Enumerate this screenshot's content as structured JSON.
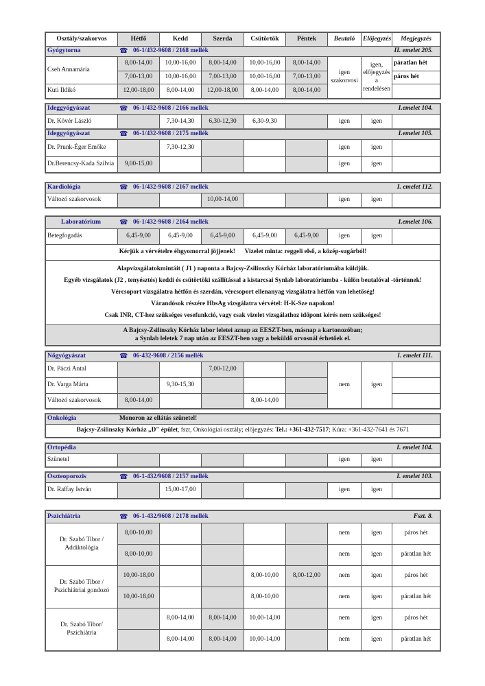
{
  "header": [
    "Osztály/szakorvos",
    "Hétfő",
    "Kedd",
    "Szerda",
    "Csütörtök",
    "Péntek",
    "Beutaló",
    "Előjegyzés",
    "Megjegyzés"
  ],
  "phone_icon": "telephone-icon",
  "colors": {
    "band": "#dcdcdc",
    "title": "#1c1c8a",
    "shaded_columns": "#dcdcdc"
  },
  "sections": [
    {
      "title": "Gyógytorna",
      "phone": "06-1/432-9608 / 2168 mellék",
      "location": "II. emelet 205.",
      "rows": [
        [
          "Cseh Annamária",
          "8,00-14,00",
          "10,00-16,00",
          "8,00-14,00",
          "10,00-16,00",
          "8,00-14,00",
          "igen szakorvosi",
          "igen, előjegyzés a rendelésen",
          "páratlan hét"
        ],
        [
          null,
          "7,00-13,00",
          "10,00-16,00",
          "7,00-13,00",
          "10,00-16,00",
          "7,00-13,00",
          null,
          null,
          "páros hét"
        ],
        [
          "Kuti Ildikó",
          "12,00-18,00",
          "8,00-14,00",
          "12,00-18,00",
          "8,00-14,00",
          "8,00-14,00",
          null,
          null,
          ""
        ]
      ]
    },
    {
      "title": "Ideggyógyászat",
      "phone": "06-1/432-9608 / 2166 mellék",
      "location": "I.emelet 104.",
      "rows": [
        [
          "Dr. Kövér László",
          "",
          "7,30-14,30",
          "6,30-12,30",
          "6,30-9,30",
          "",
          "igen",
          "igen",
          ""
        ]
      ]
    },
    {
      "title": "Ideggyógyászat",
      "phone": "06-1/432-9608 / 2175 mellék",
      "location": "I.emelet 105.",
      "rows": [
        [
          "Dr. Prunk-Éger Emőke",
          "",
          "7,30-12,30",
          "",
          "",
          "",
          "igen",
          "igen",
          ""
        ],
        [
          "Dr.Berencsy-Kada Szilvia",
          "9,00-15,00",
          "",
          "",
          "",
          "",
          "igen",
          "igen",
          ""
        ]
      ]
    },
    {
      "title": "Kardiológia",
      "phone": "06-1/432-9608 / 2167 mellék",
      "location": "I. emelet 112.",
      "rows": [
        [
          "Változó szakorvosok",
          "",
          "",
          "10,00-14,00",
          "",
          "",
          "igen",
          "igen",
          ""
        ]
      ]
    },
    {
      "title": "Laboratórium",
      "phone": "06-1/432-9608 / 2164 mellék",
      "location": "I.emelet 106.",
      "rows": [
        [
          "Betegfogadás",
          "6,45-9,00",
          "6,45-9,00",
          "6,45-9,00",
          "6,45-9,00",
          "6,45-9,00",
          "igen",
          "igen",
          ""
        ]
      ],
      "notice": "Kérjük a vérvételre éhgyomorral jöjjenek!      Vizelet minta: reggeli első, a közép-sugárból!",
      "info_lines": [
        "Alapvizsgálatokmintáit  ( J1 ) naponta a Bajcsy-Zsilinszky Kórház laboratóriumába küldjük.",
        "Egyéb vizsgálatok (J2 , tenyésztés) keddi és csütörtöki szállítással a kistarcsai Synlab laboratóriumba - külön beutalóval -történnek!",
        "Vércsoport vizsgálatra hétfőn és szerdán, vércsoport ellenanyag vizsgálatra hétfőn van lehetőség!",
        "Várandósok részére HbsAg vizsgálatra vérvétel: H-K-Sze napokon!",
        "Csak INR, CT-hez szükséges vesefunkció, vagy csak vizelet vizsgálathoz időpont kérés nem szükséges!"
      ],
      "footer_lines": [
        "A Bajcsy-Zsilinszky Kórház labor leletei aznap az EESZT-ben, másnap a kartonozóban;",
        "a Synlab leletek 7 nap után az EESZT-ben vagy a beküldő orvosnál érhetőek el."
      ]
    },
    {
      "title": "Nőgyógyászat",
      "phone": "06-432-9608 / 2156 mellék",
      "location": "I. emelet 111.",
      "rows": [
        [
          "Dr. Páczi Antal",
          "",
          "",
          "7,00-12,00",
          "",
          "",
          "nem",
          "igen",
          ""
        ],
        [
          "Dr. Varga Márta",
          "",
          "9,30-15,30",
          "",
          "",
          "",
          null,
          null,
          ""
        ],
        [
          "Változó szakorvosok",
          "8,00-14,00",
          "",
          "",
          "8,00-14,00",
          "",
          null,
          null,
          ""
        ]
      ]
    },
    {
      "title": "Onkológia",
      "band_notice": "Monoron az ellátás szünetel!",
      "location": "",
      "text_segments": [
        {
          "text": "Bajcsy-Zsilinszky Kórház „D\" épület",
          "strong": true
        },
        {
          "text": ", fszt, Onkológiai osztály; előjegyzés: ",
          "strong": false
        },
        {
          "text": "Tel.: +361-432-7517",
          "strong": true
        },
        {
          "text": "; Kúra: +361-432-7641 és 7671",
          "strong": false
        }
      ]
    },
    {
      "title": "Ortopédia",
      "location": "I. emelet 104.",
      "rows": [
        [
          "Szünetel",
          "",
          "",
          "",
          "",
          "",
          "igen",
          "igen",
          ""
        ]
      ]
    },
    {
      "title": "Oszteoporozis",
      "phone": "06-1-432/9608 / 2157 mellék",
      "location": "I. emelet 103.",
      "rows": [
        [
          "Dr. Raffay István",
          "",
          "15,00-17,00",
          "",
          "",
          "",
          "igen",
          "igen",
          ""
        ]
      ]
    },
    {
      "title": "Pszichiátria",
      "phone": "06-1-432/9608 / 2178 mellék",
      "location": "Fszt. 8.",
      "rows": [
        [
          "Dr. Szabó Tibor / Addiktológia",
          "8,00-10,00",
          "",
          "",
          "",
          "",
          "nem",
          "igen",
          "páros hét"
        ],
        [
          null,
          "8,00-10,00",
          "",
          "",
          "",
          "",
          "nem",
          "igen",
          "páratlan hét"
        ],
        [
          "Dr. Szabó Tibor / Pszichiátriai gondozó",
          "10,00-18,00",
          "",
          "",
          "8,00-10,00",
          "8,00-12,00",
          "nem",
          "igen",
          "páros hét"
        ],
        [
          null,
          "10,00-18,00",
          "",
          "",
          "8,00-10,00",
          "",
          "nem",
          "igen",
          "páratlan hét"
        ],
        [
          "Dr. Szabó Tibor/ Pszichiátria",
          "",
          "8,00-14,00",
          "8,00-14,00",
          "10,00-14,00",
          "",
          "nem",
          "igen",
          "páros hét"
        ],
        [
          null,
          "",
          "8,00-14,00",
          "8,00-14,00",
          "10,00-14,00",
          "",
          "nem",
          "igen",
          "páratlan hét"
        ]
      ]
    }
  ]
}
